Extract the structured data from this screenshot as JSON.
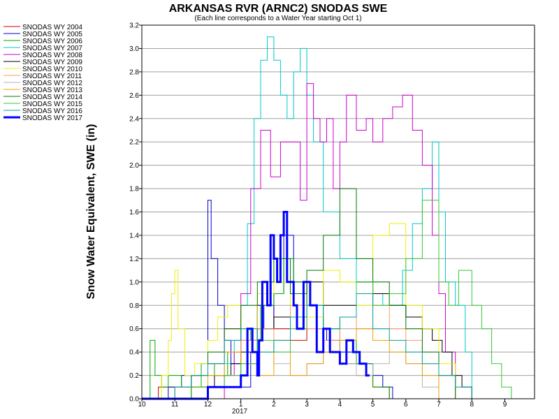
{
  "chart_data": {
    "type": "line",
    "title": "ARKANSAS RVR (ARNC2) SNODAS SWE",
    "subtitle": "(Each line corresponds to a Water Year starting Oct 1)",
    "ylabel": "Snow Water Equivalent, SWE (in)",
    "xlabel": "",
    "x_tick_labels": [
      "10",
      "11",
      "12",
      "1",
      "2",
      "3",
      "4",
      "5",
      "6",
      "7",
      "8",
      "9"
    ],
    "x_year_label": "2017",
    "xlim": [
      0,
      11.9
    ],
    "ylim": [
      0,
      3.2
    ],
    "y_ticks": [
      "0.0",
      "0.2",
      "0.4",
      "0.6",
      "0.8",
      "1.0",
      "1.2",
      "1.4",
      "1.6",
      "1.8",
      "2.0",
      "2.2",
      "2.4",
      "2.6",
      "2.8",
      "3.0",
      "3.2"
    ],
    "grid": true,
    "legend_position": "left",
    "series": [
      {
        "name": "SNODAS WY 2004",
        "color": "#cc0000",
        "width": 1,
        "x": [
          0,
          0.5,
          1,
          1.5,
          2,
          2.5,
          3,
          3.5,
          4,
          4.5,
          5,
          5.5,
          6,
          6.5,
          7,
          7.5,
          8,
          8.5,
          9,
          9.3,
          9.6,
          10,
          10.5,
          11.9
        ],
        "y": [
          0,
          0.1,
          0.1,
          0.2,
          0.3,
          0.6,
          0.5,
          0.8,
          0.6,
          0.5,
          0.7,
          0.4,
          0.3,
          0.2,
          0.1,
          0,
          0,
          0,
          0,
          0,
          0,
          0,
          0,
          0
        ]
      },
      {
        "name": "SNODAS WY 2005",
        "color": "#0000cc",
        "width": 1,
        "x": [
          0,
          0.8,
          1.2,
          1.8,
          2,
          2.1,
          2.3,
          2.5,
          2.7,
          3,
          3.3,
          3.5,
          3.7,
          4,
          4.3,
          4.6,
          5,
          5.3,
          5.6,
          6,
          6.5,
          7,
          7.3,
          7.6,
          8,
          8.5,
          11.9
        ],
        "y": [
          0,
          0.1,
          0.2,
          0.1,
          1.7,
          1.2,
          0.8,
          0.5,
          0.3,
          0.1,
          0.4,
          0.8,
          0.6,
          0.9,
          1.4,
          1.0,
          0.8,
          0.6,
          0.5,
          0.4,
          0.3,
          0.2,
          0.1,
          0,
          0,
          0,
          0
        ]
      },
      {
        "name": "SNODAS WY 2006",
        "color": "#00aa00",
        "width": 1,
        "x": [
          0,
          0.25,
          0.4,
          0.6,
          0.8,
          1.2,
          1.8,
          2.2,
          2.6,
          3,
          3.3,
          3.6,
          4,
          4.3,
          4.6,
          5,
          5.5,
          6,
          6.5,
          7,
          7.5,
          8,
          11.9
        ],
        "y": [
          0,
          0.5,
          0.2,
          0.1,
          0.2,
          0.1,
          0.3,
          0.2,
          0.4,
          0.6,
          0.5,
          0.8,
          0.9,
          1.2,
          1.0,
          0.8,
          0.6,
          0.5,
          0.3,
          0.1,
          0,
          0,
          0
        ]
      },
      {
        "name": "SNODAS WY 2007",
        "color": "#00c8c8",
        "width": 1,
        "x": [
          0,
          1.5,
          2,
          2.5,
          2.8,
          3,
          3.2,
          3.4,
          3.6,
          3.8,
          4,
          4.2,
          4.4,
          4.6,
          4.8,
          5,
          5.2,
          5.5,
          6,
          6.5,
          7,
          7.3,
          7.6,
          7.9,
          8.2,
          8.5,
          8.8,
          9,
          9.2,
          9.5,
          9.8,
          10,
          11.9
        ],
        "y": [
          0,
          0.1,
          0.2,
          0.3,
          0.5,
          0.8,
          1.5,
          2.4,
          2.9,
          3.1,
          2.9,
          2.6,
          2.4,
          2.8,
          3.0,
          2.6,
          2.2,
          1.6,
          1.2,
          1.0,
          0.9,
          0.8,
          0.8,
          1.1,
          1.5,
          1.8,
          2.2,
          1.6,
          1.0,
          0.8,
          0.4,
          0,
          0
        ]
      },
      {
        "name": "SNODAS WY 2008",
        "color": "#cc00cc",
        "width": 1,
        "x": [
          0,
          2.5,
          2.8,
          3,
          3.3,
          3.6,
          3.9,
          4.2,
          4.5,
          4.8,
          5,
          5.2,
          5.4,
          5.6,
          5.8,
          6,
          6.2,
          6.5,
          6.8,
          7,
          7.3,
          7.6,
          7.9,
          8.2,
          8.5,
          8.8,
          9,
          9.2,
          9.5,
          11.9
        ],
        "y": [
          0,
          0.2,
          0.4,
          0.9,
          1.8,
          2.3,
          1.9,
          2.2,
          2.2,
          1.7,
          2.7,
          2.4,
          2.2,
          2.4,
          1.8,
          2.2,
          2.6,
          2.3,
          2.4,
          2.2,
          2.4,
          2.5,
          2.6,
          2.3,
          2.0,
          1.4,
          0.9,
          0.4,
          0,
          0
        ]
      },
      {
        "name": "SNODAS WY 2009",
        "color": "#000000",
        "width": 1,
        "x": [
          0,
          1.5,
          2.2,
          2.7,
          3,
          3.5,
          4,
          4.5,
          5,
          5.5,
          6,
          6.5,
          7,
          7.5,
          8,
          8.5,
          8.8,
          9.1,
          9.4,
          9.7,
          10,
          11.9
        ],
        "y": [
          0,
          0.1,
          0.2,
          0.3,
          0.4,
          0.6,
          0.7,
          0.9,
          1.0,
          0.8,
          0.8,
          1.0,
          0.9,
          0.8,
          0.7,
          0.6,
          0.5,
          0.4,
          0.2,
          0.1,
          0,
          0
        ]
      },
      {
        "name": "SNODAS WY 2010",
        "color": "#f0f000",
        "width": 1,
        "x": [
          0,
          0.6,
          0.8,
          0.9,
          1,
          1.1,
          1.3,
          1.6,
          2,
          2.3,
          2.6,
          3,
          3.5,
          4,
          4.5,
          5,
          5.5,
          6,
          6.5,
          7,
          7.5,
          8,
          8.5,
          9,
          9.5,
          11.9
        ],
        "y": [
          0,
          0.2,
          0.5,
          0.9,
          1.1,
          0.6,
          0.2,
          0.3,
          0.5,
          0.7,
          0.8,
          0.6,
          0.9,
          1.0,
          0.8,
          0.7,
          1.1,
          1.0,
          0.8,
          1.4,
          1.5,
          0.8,
          0.6,
          0.3,
          0,
          0
        ]
      },
      {
        "name": "SNODAS WY 2011",
        "color": "#ff9966",
        "width": 1,
        "x": [
          0,
          1,
          2,
          2.5,
          3,
          3.5,
          4,
          4.5,
          5,
          5.5,
          6,
          6.5,
          7,
          7.5,
          8,
          8.5,
          9,
          9.5,
          11.9
        ],
        "y": [
          0,
          0.1,
          0.2,
          0.4,
          0.5,
          0.6,
          0.5,
          0.8,
          0.6,
          0.5,
          0.7,
          0.6,
          0.8,
          0.6,
          0.5,
          0.3,
          0.2,
          0,
          0
        ]
      },
      {
        "name": "SNODAS WY 2012",
        "color": "#b4b4b4",
        "width": 1,
        "x": [
          0,
          1,
          1.5,
          2,
          2.5,
          3,
          3.5,
          4,
          4.5,
          5,
          5.5,
          6,
          6.5,
          7,
          7.5,
          8,
          8.5,
          9,
          11.9
        ],
        "y": [
          0,
          0.1,
          0.2,
          0.3,
          0.2,
          0.3,
          0.4,
          0.3,
          0.2,
          0.3,
          0.4,
          0.3,
          0.2,
          0.3,
          0.4,
          0.3,
          0.1,
          0,
          0
        ]
      },
      {
        "name": "SNODAS WY 2013",
        "color": "#f0a000",
        "width": 1,
        "x": [
          0,
          1.5,
          2,
          2.5,
          3,
          3.5,
          4,
          4.5,
          5,
          5.5,
          6,
          6.5,
          7,
          7.5,
          8,
          8.5,
          9,
          11.9
        ],
        "y": [
          0,
          0.1,
          0.2,
          0.4,
          0.3,
          0.2,
          0.5,
          0.2,
          0.3,
          0.4,
          0.5,
          0.6,
          0.5,
          0.4,
          0.3,
          0.2,
          0,
          0
        ]
      },
      {
        "name": "SNODAS WY 2014",
        "color": "#007800",
        "width": 1,
        "x": [
          0,
          1.5,
          2,
          2.5,
          3,
          3.5,
          4,
          4.5,
          5,
          5.5,
          6,
          6.5,
          7,
          7.5,
          8,
          8.5,
          9,
          9.5,
          11.9
        ],
        "y": [
          0,
          0.2,
          0.4,
          0.6,
          0.8,
          1.0,
          1.2,
          0.9,
          1.1,
          1.4,
          1.8,
          1.2,
          1.0,
          0.8,
          0.6,
          0.4,
          0.2,
          0,
          0
        ]
      },
      {
        "name": "SNODAS WY 2015",
        "color": "#32c832",
        "width": 1,
        "x": [
          0,
          1.5,
          2.5,
          3,
          3.5,
          4,
          4.5,
          5,
          5.5,
          6,
          6.5,
          7,
          7.5,
          8,
          8.5,
          9,
          9.3,
          9.6,
          10,
          10.3,
          10.6,
          10.9,
          11.2,
          11.9
        ],
        "y": [
          0,
          0.1,
          0.2,
          0.3,
          0.5,
          0.4,
          0.6,
          0.8,
          0.6,
          0.7,
          1.0,
          0.8,
          0.9,
          1.2,
          1.7,
          1.0,
          0.8,
          1.1,
          0.8,
          0.6,
          0.3,
          0.1,
          0,
          0
        ]
      },
      {
        "name": "SNODAS WY 2016",
        "color": "#00a0a0",
        "width": 1,
        "x": [
          0,
          1,
          1.5,
          2,
          2.5,
          3,
          3.5,
          4,
          4.5,
          5,
          5.5,
          6,
          6.5,
          7,
          7.5,
          8,
          8.5,
          9,
          9.5,
          10,
          11.9
        ],
        "y": [
          0,
          0.1,
          0.2,
          0.3,
          0.5,
          0.6,
          0.4,
          0.5,
          0.7,
          0.8,
          0.6,
          0.7,
          0.9,
          0.6,
          0.5,
          0.4,
          0.3,
          0.2,
          0.1,
          0,
          0
        ]
      },
      {
        "name": "SNODAS WY 2017",
        "color": "#0000ff",
        "width": 3,
        "x": [
          0,
          1.9,
          2,
          2.5,
          2.8,
          3,
          3.2,
          3.35,
          3.5,
          3.55,
          3.65,
          3.8,
          3.9,
          4.0,
          4.1,
          4.2,
          4.3,
          4.4,
          4.5,
          4.6,
          4.7,
          4.9,
          5.1,
          5.3,
          5.5,
          5.7,
          6.0,
          6.2,
          6.4,
          6.6,
          6.8,
          6.9
        ],
        "y": [
          0,
          0,
          0.1,
          0.1,
          0.1,
          0.2,
          0.6,
          0.4,
          0.2,
          0.5,
          1.0,
          0.8,
          1.4,
          1.2,
          1.0,
          1.4,
          1.6,
          1.0,
          1.0,
          0.8,
          0.6,
          1.0,
          0.8,
          0.4,
          0.6,
          0.4,
          0.3,
          0.5,
          0.4,
          0.3,
          0.2,
          0.2
        ]
      }
    ]
  }
}
